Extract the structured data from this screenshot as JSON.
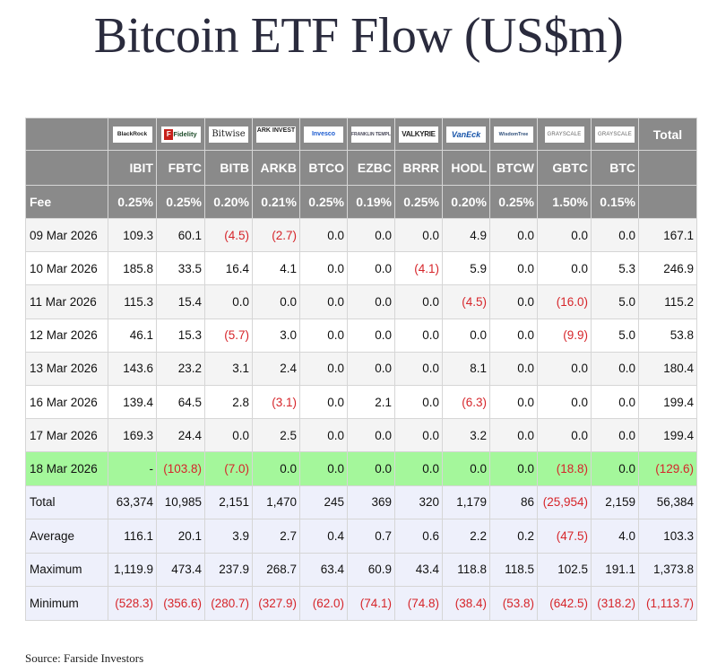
{
  "title": "Bitcoin ETF Flow (US$m)",
  "source": "Source: Farside Investors",
  "colors": {
    "header_bg": "#8a8a8a",
    "header_text": "#ffffff",
    "highlight_row": "#a4f79b",
    "stats_bg": "#eef0fb",
    "negative_text": "#d6252a"
  },
  "chart_data": {
    "type": "table",
    "title": "Bitcoin ETF Flow (US$m)",
    "issuers": [
      "BlackRock",
      "Fidelity",
      "Bitwise",
      "ARK INVEST",
      "Invesco",
      "FRANKLIN TEMPLETON",
      "VALKYRIE",
      "VanEck",
      "WisdomTree",
      "GRAYSCALE",
      "GRAYSCALE"
    ],
    "total_header": "Total",
    "tickers": [
      "IBIT",
      "FBTC",
      "BITB",
      "ARKB",
      "BTCO",
      "EZBC",
      "BRRR",
      "HODL",
      "BTCW",
      "GBTC",
      "BTC"
    ],
    "fee_label": "Fee",
    "fees": [
      "0.25%",
      "0.25%",
      "0.20%",
      "0.21%",
      "0.25%",
      "0.19%",
      "0.25%",
      "0.20%",
      "0.25%",
      "1.50%",
      "0.15%"
    ],
    "rows": [
      {
        "date": "09 Mar 2026",
        "values": [
          "109.3",
          "60.1",
          "(4.5)",
          "(2.7)",
          "0.0",
          "0.0",
          "0.0",
          "4.9",
          "0.0",
          "0.0",
          "0.0"
        ],
        "total": "167.1"
      },
      {
        "date": "10 Mar 2026",
        "values": [
          "185.8",
          "33.5",
          "16.4",
          "4.1",
          "0.0",
          "0.0",
          "(4.1)",
          "5.9",
          "0.0",
          "0.0",
          "5.3"
        ],
        "total": "246.9"
      },
      {
        "date": "11 Mar 2026",
        "values": [
          "115.3",
          "15.4",
          "0.0",
          "0.0",
          "0.0",
          "0.0",
          "0.0",
          "(4.5)",
          "0.0",
          "(16.0)",
          "5.0"
        ],
        "total": "115.2"
      },
      {
        "date": "12 Mar 2026",
        "values": [
          "46.1",
          "15.3",
          "(5.7)",
          "3.0",
          "0.0",
          "0.0",
          "0.0",
          "0.0",
          "0.0",
          "(9.9)",
          "5.0"
        ],
        "total": "53.8"
      },
      {
        "date": "13 Mar 2026",
        "values": [
          "143.6",
          "23.2",
          "3.1",
          "2.4",
          "0.0",
          "0.0",
          "0.0",
          "8.1",
          "0.0",
          "0.0",
          "0.0"
        ],
        "total": "180.4"
      },
      {
        "date": "16 Mar 2026",
        "values": [
          "139.4",
          "64.5",
          "2.8",
          "(3.1)",
          "0.0",
          "2.1",
          "0.0",
          "(6.3)",
          "0.0",
          "0.0",
          "0.0"
        ],
        "total": "199.4"
      },
      {
        "date": "17 Mar 2026",
        "values": [
          "169.3",
          "24.4",
          "0.0",
          "2.5",
          "0.0",
          "0.0",
          "0.0",
          "3.2",
          "0.0",
          "0.0",
          "0.0"
        ],
        "total": "199.4"
      },
      {
        "date": "18 Mar 2026",
        "values": [
          "-",
          "(103.8)",
          "(7.0)",
          "0.0",
          "0.0",
          "0.0",
          "0.0",
          "0.0",
          "0.0",
          "(18.8)",
          "0.0"
        ],
        "total": "(129.6)",
        "highlight": true
      }
    ],
    "stats": [
      {
        "label": "Total",
        "values": [
          "63,374",
          "10,985",
          "2,151",
          "1,470",
          "245",
          "369",
          "320",
          "1,179",
          "86",
          "(25,954)",
          "2,159"
        ],
        "total": "56,384"
      },
      {
        "label": "Average",
        "values": [
          "116.1",
          "20.1",
          "3.9",
          "2.7",
          "0.4",
          "0.7",
          "0.6",
          "2.2",
          "0.2",
          "(47.5)",
          "4.0"
        ],
        "total": "103.3"
      },
      {
        "label": "Maximum",
        "values": [
          "1,119.9",
          "473.4",
          "237.9",
          "268.7",
          "63.4",
          "60.9",
          "43.4",
          "118.8",
          "118.5",
          "102.5",
          "191.1"
        ],
        "total": "1,373.8"
      },
      {
        "label": "Minimum",
        "values": [
          "(528.3)",
          "(356.6)",
          "(280.7)",
          "(327.9)",
          "(62.0)",
          "(74.1)",
          "(74.8)",
          "(38.4)",
          "(53.8)",
          "(642.5)",
          "(318.2)"
        ],
        "total": "(1,113.7)"
      }
    ]
  }
}
